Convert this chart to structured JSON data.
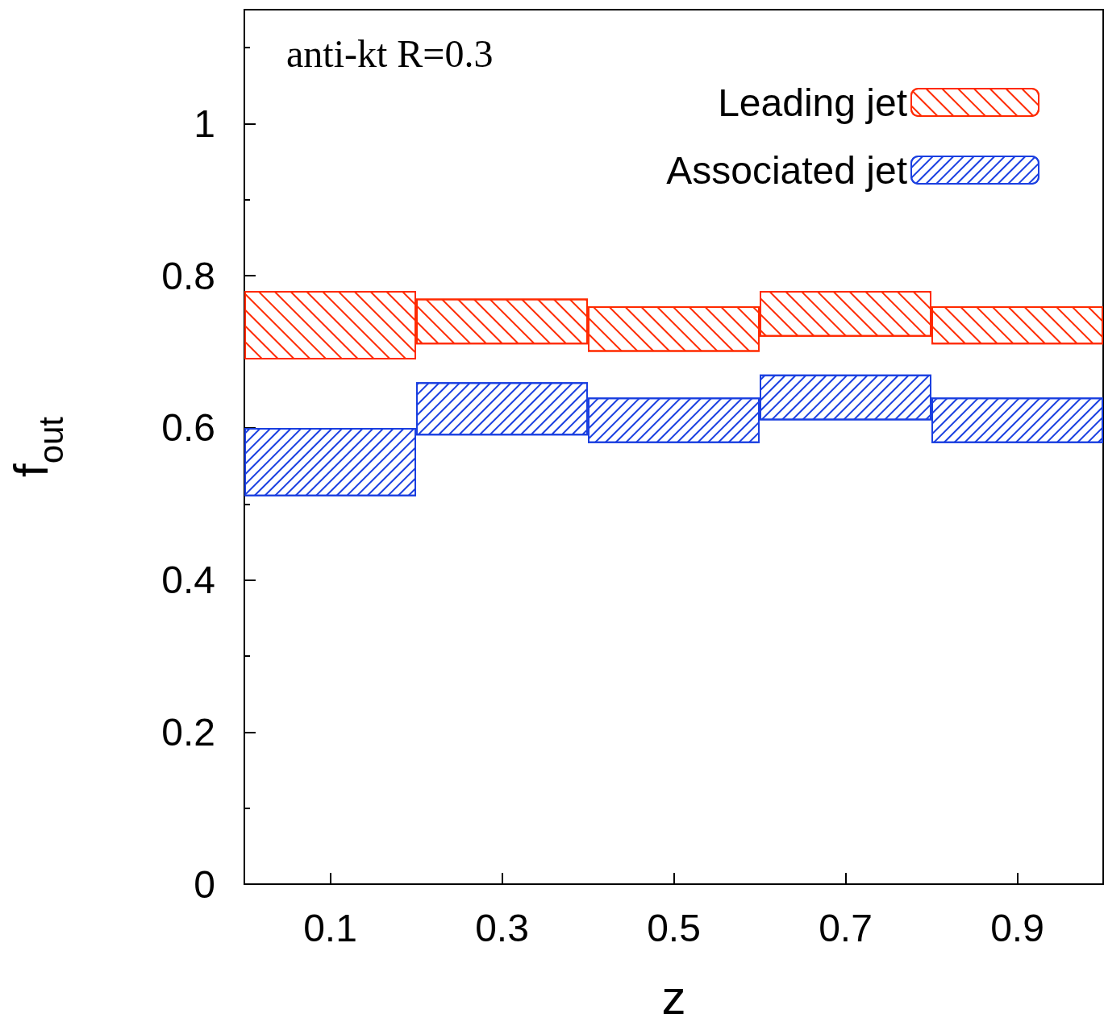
{
  "chart_data": {
    "type": "bar",
    "xlabel": "z",
    "ylabel": "f$_{out}$",
    "annotations": [
      "anti-kt R=0.3"
    ],
    "categories": [
      "0.1",
      "0.3",
      "0.5",
      "0.7",
      "0.9"
    ],
    "series": [
      {
        "name": "Leading jet",
        "color": "#ff2a00",
        "base": [
          0.69,
          0.71,
          0.7,
          0.72,
          0.71
        ],
        "values": [
          0.09,
          0.06,
          0.06,
          0.06,
          0.05
        ]
      },
      {
        "name": "Associated jet",
        "color": "#1a3fe0",
        "base": [
          0.51,
          0.59,
          0.58,
          0.61,
          0.58
        ],
        "values": [
          0.09,
          0.07,
          0.06,
          0.06,
          0.06
        ]
      }
    ],
    "ylim": [
      0,
      1.15
    ],
    "yticks": [
      0,
      0.2,
      0.4,
      0.6,
      0.8,
      1
    ],
    "grid": false,
    "legend": "top right"
  }
}
